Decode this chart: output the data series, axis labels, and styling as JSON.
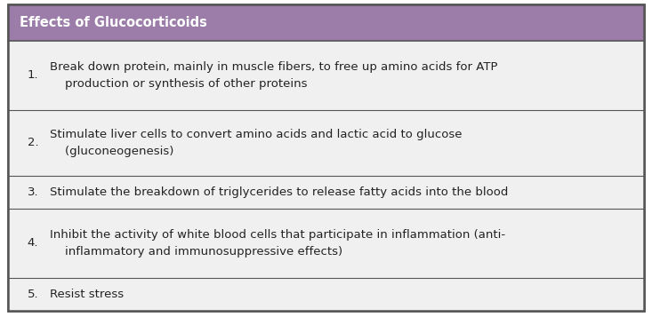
{
  "title": "Effects of Glucocorticoids",
  "title_bg": "#9c7daa",
  "title_text_color": "#ffffff",
  "row_bg_odd": "#f0f0f0",
  "row_bg_even": "#f0f0f0",
  "border_color": "#555555",
  "outer_border_color": "#555555",
  "text_color": "#222222",
  "rows": [
    {
      "num": "1.",
      "text": "Break down protein, mainly in muscle fibers, to free up amino acids for ATP\n    production or synthesis of other proteins"
    },
    {
      "num": "2.",
      "text": "Stimulate liver cells to convert amino acids and lactic acid to glucose\n    (gluconeogenesis)"
    },
    {
      "num": "3.",
      "text": "Stimulate the breakdown of triglycerides to release fatty acids into the blood"
    },
    {
      "num": "4.",
      "text": "Inhibit the activity of white blood cells that participate in inflammation (anti-\n    inflammatory and immunosuppressive effects)"
    },
    {
      "num": "5.",
      "text": "Resist stress"
    }
  ],
  "font_size": 9.5,
  "title_font_size": 10.5,
  "fig_width": 7.33,
  "fig_height": 3.57,
  "dpi": 100
}
